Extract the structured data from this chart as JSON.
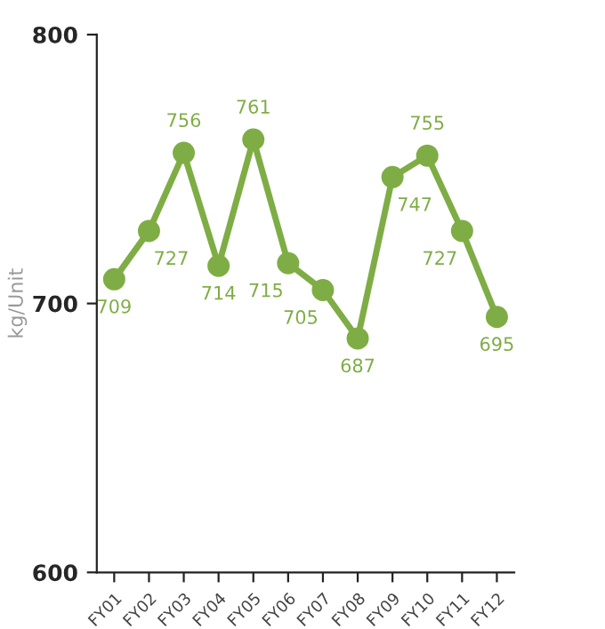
{
  "chart_data": {
    "type": "line",
    "ylabel": "kg/Unit",
    "categories": [
      "FY01",
      "FY02",
      "FY03",
      "FY04",
      "FY05",
      "FY06",
      "FY07",
      "FY08",
      "FY09",
      "FY10",
      "FY11",
      "FY12"
    ],
    "series": [
      {
        "color": "#7fad45",
        "values": [
          709,
          727,
          756,
          714,
          761,
          715,
          705,
          687,
          747,
          755,
          727,
          695
        ]
      }
    ],
    "ylim": [
      600,
      800
    ],
    "yticks": [
      600,
      700,
      800
    ],
    "marker": "circle",
    "line_style": "solid",
    "data_labels": true,
    "grid": false,
    "legend": false
  }
}
